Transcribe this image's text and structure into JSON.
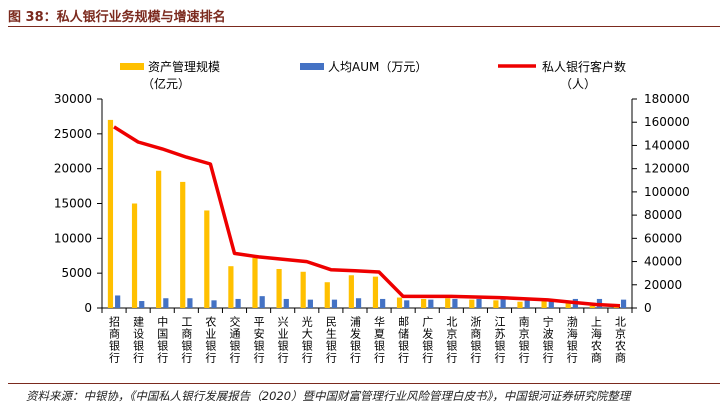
{
  "figure_title": "图 38：私人银行业务规模与增速排名",
  "source_note": "资料来源：中银协，《中国私人银行发展报告（2020）暨中国财富管理行业风险管理白皮书》，中国银河证券研究院整理",
  "colors": {
    "bar1": "#ffc000",
    "bar2": "#4472c4",
    "line": "#ee0000",
    "title": "#7b2a1e"
  },
  "chart_data": {
    "type": "bar+line",
    "categories": [
      "招商银行",
      "建设银行",
      "中国银行",
      "工商银行",
      "农业银行",
      "交通银行",
      "平安银行",
      "兴业银行",
      "光大银行",
      "民生银行",
      "浦发银行",
      "华夏银行",
      "邮储银行",
      "广发银行",
      "北京银行",
      "浙商银行",
      "江苏银行",
      "南京银行",
      "宁波银行",
      "渤海银行",
      "上海农商",
      "北京农商"
    ],
    "series": [
      {
        "name": "资产管理规模",
        "name_line2": "（亿元）",
        "axis": "left",
        "type": "bar",
        "values": [
          27000,
          15000,
          19700,
          18100,
          14000,
          6000,
          7200,
          5600,
          5200,
          3700,
          4700,
          4500,
          1500,
          1300,
          1400,
          1200,
          1100,
          900,
          1100,
          900,
          300,
          200
        ]
      },
      {
        "name": "人均AUM（万元）",
        "axis": "left",
        "type": "bar",
        "values": [
          1800,
          1000,
          1400,
          1400,
          1100,
          1300,
          1700,
          1300,
          1200,
          1200,
          1400,
          1300,
          1100,
          1200,
          1300,
          1300,
          1300,
          1200,
          1100,
          1300,
          1300,
          1200
        ]
      },
      {
        "name": "私人银行客户数",
        "name_line2": "（人）",
        "axis": "right",
        "type": "line",
        "values": [
          156000,
          143000,
          137000,
          130000,
          124000,
          47000,
          44000,
          42000,
          40000,
          33000,
          32000,
          31000,
          10000,
          10000,
          10000,
          9500,
          9000,
          8000,
          7000,
          5000,
          3000,
          2000
        ]
      }
    ],
    "y_left": {
      "min": 0,
      "max": 30000,
      "ticks": [
        "0",
        "5000",
        "10000",
        "15000",
        "20000",
        "25000",
        "30000"
      ]
    },
    "y_right": {
      "min": 0,
      "max": 180000,
      "ticks": [
        "0",
        "20000",
        "40000",
        "60000",
        "80000",
        "100000",
        "120000",
        "140000",
        "160000",
        "180000"
      ]
    }
  }
}
